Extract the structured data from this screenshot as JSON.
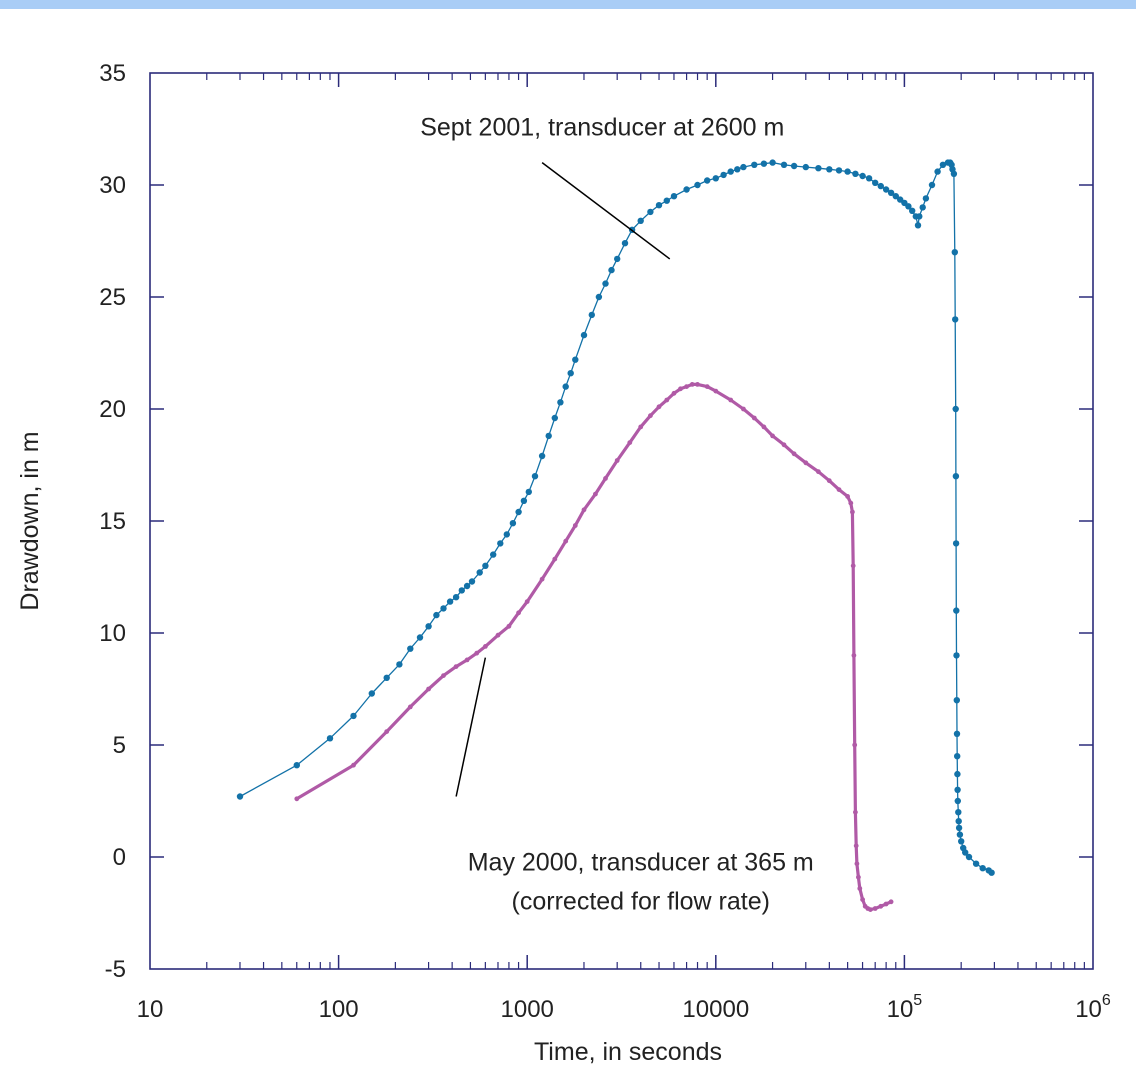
{
  "colors": {
    "top_bar": "#a9cdf6",
    "axis": "#2b2b7a",
    "sept": "#1372a8",
    "may": "#b05aa6",
    "leader": "#000000"
  },
  "chart_data": {
    "type": "scatter",
    "title": "",
    "xlabel": "Time, in seconds",
    "ylabel": "Drawdown, in m",
    "xscale": "log",
    "xlim": [
      10,
      1000000
    ],
    "ylim": [
      -5,
      35
    ],
    "x_ticks": [
      {
        "value": 10,
        "label": "10"
      },
      {
        "value": 100,
        "label": "100"
      },
      {
        "value": 1000,
        "label": "1000"
      },
      {
        "value": 10000,
        "label": "10000"
      },
      {
        "value": 100000,
        "base": "10",
        "exp": "5"
      },
      {
        "value": 1000000,
        "base": "10",
        "exp": "6"
      }
    ],
    "y_ticks": [
      {
        "value": -5,
        "label": "-5"
      },
      {
        "value": 0,
        "label": "0"
      },
      {
        "value": 5,
        "label": "5"
      },
      {
        "value": 10,
        "label": "10"
      },
      {
        "value": 15,
        "label": "15"
      },
      {
        "value": 20,
        "label": "20"
      },
      {
        "value": 25,
        "label": "25"
      },
      {
        "value": 30,
        "label": "30"
      },
      {
        "value": 35,
        "label": "35"
      }
    ],
    "grid": false,
    "annotations": [
      {
        "lines": [
          "Sept 2001, transducer at 2600 m"
        ],
        "series": "sept",
        "x": 2500,
        "y": 32.2,
        "leader_from": [
          1200,
          31.0
        ],
        "leader_to": [
          5700,
          26.7
        ]
      },
      {
        "lines": [
          "May 2000, transducer at 365 m",
          "(corrected for flow rate)"
        ],
        "series": "may",
        "x": 4000,
        "y": -0.6,
        "leader_from": [
          600,
          8.9
        ],
        "leader_to": [
          420,
          2.7
        ]
      }
    ],
    "series": [
      {
        "id": "sept",
        "color": "#1372a8",
        "marker": "dot",
        "x": [
          30,
          60,
          90,
          120,
          150,
          180,
          210,
          240,
          270,
          300,
          330,
          360,
          390,
          420,
          450,
          480,
          510,
          560,
          600,
          660,
          720,
          780,
          840,
          900,
          960,
          1020,
          1100,
          1200,
          1300,
          1400,
          1500,
          1600,
          1700,
          1800,
          2000,
          2200,
          2400,
          2600,
          2800,
          3000,
          3300,
          3600,
          4000,
          4500,
          5000,
          5500,
          6000,
          7000,
          8000,
          9000,
          10000,
          11000,
          12000,
          13000,
          14000,
          16000,
          18000,
          20000,
          23000,
          26000,
          30000,
          35000,
          40000,
          45000,
          50000,
          55000,
          60000,
          65000,
          70000,
          75000,
          80000,
          85000,
          90000,
          95000,
          100000,
          105000,
          110000,
          115000,
          118000,
          120000,
          125000,
          130000,
          140000,
          150000,
          160000,
          170000,
          175000,
          178000,
          180000,
          183000,
          185000,
          186000,
          187000,
          187500,
          188000,
          188500,
          189000,
          189500,
          190000,
          190500,
          191000,
          191500,
          192000,
          193000,
          194000,
          195000,
          197000,
          200000,
          205000,
          210000,
          220000,
          240000,
          260000,
          280000,
          290000
        ],
        "y": [
          2.7,
          4.1,
          5.3,
          6.3,
          7.3,
          8.0,
          8.6,
          9.3,
          9.8,
          10.3,
          10.8,
          11.1,
          11.4,
          11.6,
          11.9,
          12.1,
          12.3,
          12.7,
          13.0,
          13.5,
          14.0,
          14.4,
          14.9,
          15.4,
          15.9,
          16.3,
          17.0,
          17.9,
          18.8,
          19.6,
          20.3,
          21.0,
          21.6,
          22.2,
          23.3,
          24.2,
          25.0,
          25.6,
          26.2,
          26.7,
          27.4,
          28.0,
          28.4,
          28.8,
          29.1,
          29.3,
          29.5,
          29.8,
          30.0,
          30.2,
          30.3,
          30.45,
          30.6,
          30.7,
          30.8,
          30.9,
          30.95,
          31.0,
          30.9,
          30.85,
          30.8,
          30.75,
          30.7,
          30.65,
          30.6,
          30.5,
          30.4,
          30.3,
          30.1,
          29.95,
          29.8,
          29.65,
          29.5,
          29.35,
          29.2,
          29.05,
          28.85,
          28.6,
          28.2,
          28.6,
          29.0,
          29.4,
          30.0,
          30.6,
          30.9,
          31.0,
          31.0,
          30.9,
          30.7,
          30.5,
          27.0,
          24.0,
          20.0,
          17.0,
          14.0,
          11.0,
          9.0,
          7.0,
          5.5,
          4.5,
          3.7,
          3.0,
          2.5,
          2.0,
          1.6,
          1.3,
          1.0,
          0.7,
          0.4,
          0.2,
          0.0,
          -0.3,
          -0.5,
          -0.6,
          -0.7
        ]
      },
      {
        "id": "may",
        "color": "#b05aa6",
        "marker": "dot",
        "x": [
          60,
          120,
          180,
          240,
          300,
          360,
          420,
          480,
          540,
          600,
          700,
          800,
          900,
          1000,
          1200,
          1400,
          1600,
          1800,
          2000,
          2300,
          2600,
          3000,
          3500,
          4000,
          4500,
          5000,
          5500,
          6000,
          6500,
          7000,
          7500,
          8000,
          9000,
          10000,
          12000,
          14000,
          16000,
          18000,
          20000,
          23000,
          26000,
          30000,
          35000,
          40000,
          45000,
          50000,
          52000,
          53000,
          53500,
          54000,
          54500,
          55000,
          55500,
          56000,
          57000,
          58000,
          60000,
          62000,
          64000,
          66000,
          70000,
          75000,
          80000,
          85000
        ],
        "y": [
          2.6,
          4.1,
          5.6,
          6.7,
          7.5,
          8.1,
          8.5,
          8.8,
          9.1,
          9.4,
          9.9,
          10.3,
          10.9,
          11.4,
          12.4,
          13.3,
          14.1,
          14.8,
          15.5,
          16.2,
          16.9,
          17.7,
          18.5,
          19.2,
          19.7,
          20.1,
          20.4,
          20.7,
          20.9,
          21.0,
          21.1,
          21.1,
          21.0,
          20.8,
          20.4,
          20.0,
          19.6,
          19.2,
          18.8,
          18.4,
          18.0,
          17.6,
          17.2,
          16.8,
          16.4,
          16.1,
          15.8,
          15.4,
          13.0,
          9.0,
          5.0,
          2.0,
          0.5,
          -0.3,
          -0.9,
          -1.4,
          -1.9,
          -2.2,
          -2.3,
          -2.35,
          -2.3,
          -2.2,
          -2.1,
          -2.0
        ]
      }
    ]
  }
}
